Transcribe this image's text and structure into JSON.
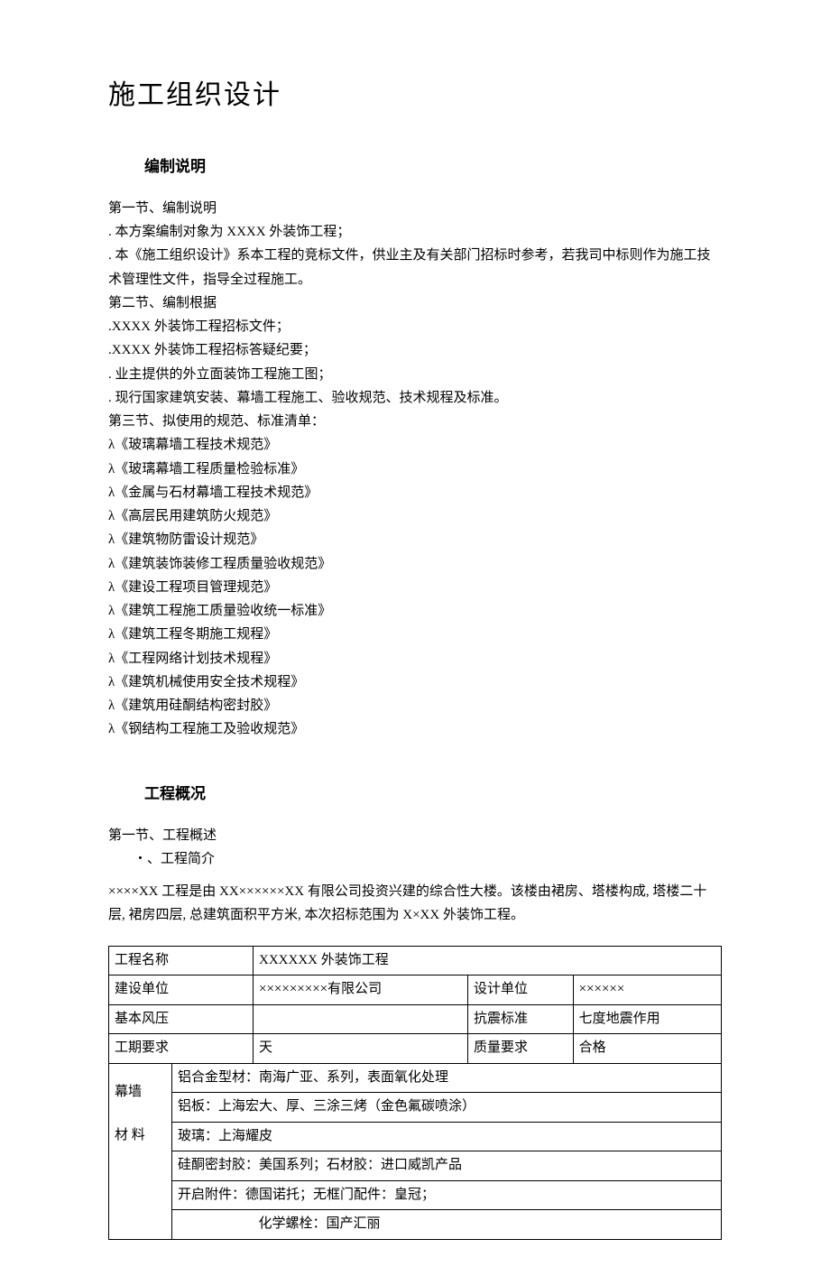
{
  "doc": {
    "main_title": "施工组织设计",
    "section1": {
      "title": "编制说明",
      "lines": [
        "第一节、编制说明",
        ". 本方案编制对象为 XXXX 外装饰工程；",
        ". 本《施工组织设计》系本工程的竞标文件，供业主及有关部门招标时参考，若我司中标则作为施工技术管理性文件，指导全过程施工。",
        "第二节、编制根据",
        ".XXXX 外装饰工程招标文件；",
        ".XXXX 外装饰工程招标答疑纪要；",
        ". 业主提供的外立面装饰工程施工图；",
        ". 现行国家建筑安装、幕墙工程施工、验收规范、技术规程及标准。",
        "第三节、拟使用的规范、标准清单：",
        "λ《玻璃幕墙工程技术规范》",
        "λ《玻璃幕墙工程质量检验标准》",
        "λ《金属与石材幕墙工程技术规范》",
        "λ《高层民用建筑防火规范》",
        "λ《建筑物防雷设计规范》",
        "λ《建筑装饰装修工程质量验收规范》",
        "λ《建设工程项目管理规范》",
        "λ《建筑工程施工质量验收统一标准》",
        "λ《建筑工程冬期施工规程》",
        "λ《工程网络计划技术规程》",
        "λ《建筑机械使用安全技术规程》",
        "λ《建筑用硅酮结构密封胶》",
        "λ《钢结构工程施工及验收规范》"
      ]
    },
    "section2": {
      "title": "工程概况",
      "sub_heading": "第一节、工程概述",
      "sub_item": "・、工程简介",
      "desc": "××××XX 工程是由 XX××××××XX 有限公司投资兴建的综合性大楼。该楼由裙房、塔楼构成, 塔楼二十层, 裙房四层, 总建筑面积平方米, 本次招标范围为 X×XX 外装饰工程。"
    },
    "table": {
      "r1": {
        "c1": "工程名称",
        "c2": "XXXXXX 外装饰工程"
      },
      "r2": {
        "c1": "建设单位",
        "c2": "×××××××××有限公司",
        "c3": "设计单位",
        "c4": "××××××"
      },
      "r3": {
        "c1": "基本风压",
        "c2": "",
        "c3": "抗震标准",
        "c4": "七度地震作用"
      },
      "r4": {
        "c1": "工期要求",
        "c2": "  天",
        "c3": "质量要求",
        "c4": "合格"
      },
      "r5": {
        "left_top": "幕墙",
        "content1": "铝合金型材：南海广亚、系列，表面氧化处理",
        "content2": "铝板：上海宏大、厚、三涂三烤（金色氟碳喷涂）"
      },
      "r6": {
        "left": "材 料",
        "content1": "玻璃：上海耀皮",
        "content2": "硅酮密封胶：美国系列；石材胶：进口威凯产品",
        "content3": "开启附件：德国诺托；无框门配件：皇冠；",
        "content4": "化学螺栓：国产汇丽"
      }
    },
    "style": {
      "title_fontsize": 30,
      "section_fontsize": 17,
      "body_fontsize": 15,
      "text_color": "#000000",
      "background": "#ffffff",
      "border_color": "#000000"
    }
  }
}
